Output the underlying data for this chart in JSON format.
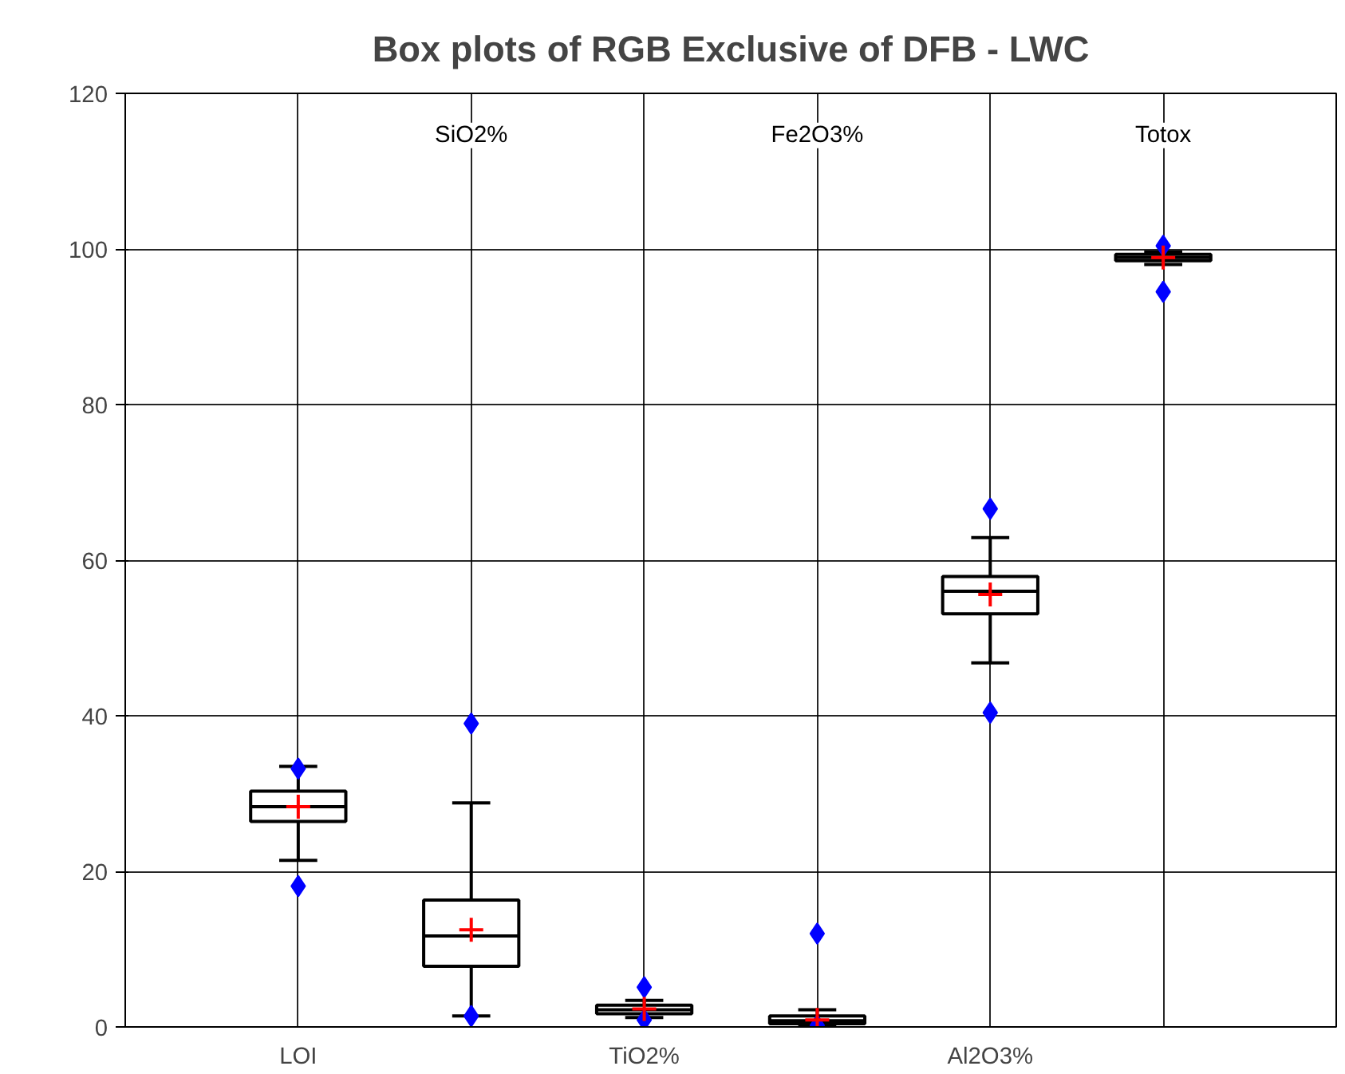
{
  "chart_data": {
    "type": "box",
    "title": "Box plots of RGB Exclusive of DFB - LWC",
    "categories": [
      "LOI",
      "SiO2%",
      "TiO2%",
      "Fe2O3%",
      "Al2O3%",
      "Totox"
    ],
    "boxes": [
      {
        "low": 21.4,
        "q1": 26.4,
        "median": 28.3,
        "q3": 30.3,
        "high": 33.5,
        "mean": 28.3,
        "outliers": [
          18.1,
          33.2
        ]
      },
      {
        "low": 1.4,
        "q1": 7.8,
        "median": 11.7,
        "q3": 16.3,
        "high": 28.8,
        "mean": 12.5,
        "outliers": [
          1.4,
          39.0
        ]
      },
      {
        "low": 1.2,
        "q1": 1.7,
        "median": 2.2,
        "q3": 2.8,
        "high": 3.4,
        "mean": 2.3,
        "outliers": [
          0.9,
          5.1
        ]
      },
      {
        "low": 0.1,
        "q1": 0.4,
        "median": 0.8,
        "q3": 1.4,
        "high": 2.2,
        "mean": 0.9,
        "outliers": [
          0.2,
          12.0
        ]
      },
      {
        "low": 46.8,
        "q1": 53.1,
        "median": 56.0,
        "q3": 57.9,
        "high": 62.9,
        "mean": 55.6,
        "outliers": [
          40.4,
          66.6
        ]
      },
      {
        "low": 98.0,
        "q1": 98.5,
        "median": 98.9,
        "q3": 99.3,
        "high": 99.6,
        "mean": 98.9,
        "outliers": [
          94.5,
          100.4
        ]
      }
    ],
    "color": "#000000",
    "marker": "diamond",
    "ylim": [
      0,
      120
    ],
    "yticks": [
      0,
      20,
      40,
      60,
      80,
      100,
      120
    ],
    "grid": true
  }
}
